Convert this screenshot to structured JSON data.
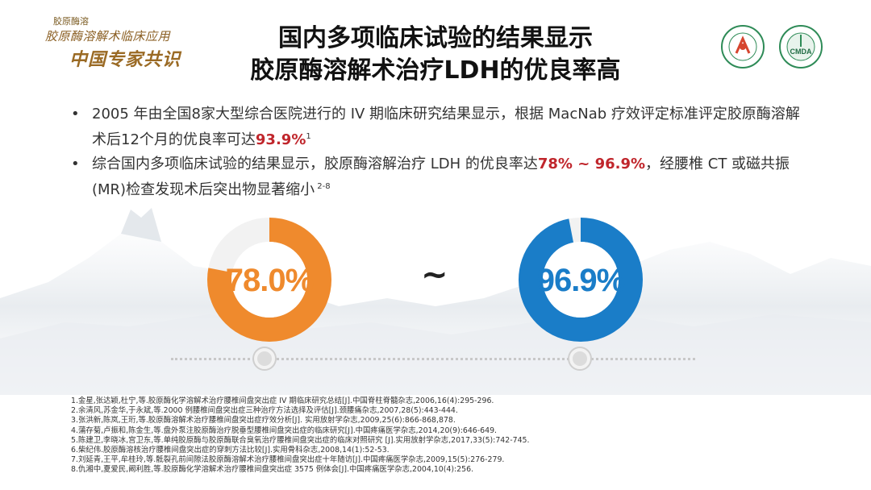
{
  "logo": {
    "small_text": "胶原酶溶",
    "line1": "胶原酶溶解术临床应用",
    "line2": "中国专家共识"
  },
  "title": {
    "line1": "国内多项临床试验的结果显示",
    "line2": "胶原酶溶解术治疗LDH的优良率高"
  },
  "emblems": [
    {
      "name": "chinese-medical-association-emblem",
      "text": "中华医学会"
    },
    {
      "name": "cmda-emblem",
      "text": "CMDA"
    }
  ],
  "bullets": [
    {
      "dot": "•",
      "text_before": "2005 年由全国8家大型综合医院进行的 IV 期临床研究结果显示，根据 MacNab 疗效评定标准评定胶原酶溶解术后12个月的优良率可达",
      "highlight": "93.9%",
      "sup": "1",
      "text_after": ""
    },
    {
      "dot": "•",
      "text_before": "综合国内多项临床试验的结果显示，胶原酶溶解治疗 LDH 的优良率达",
      "highlight": "78% ~ 96.9%",
      "text_after": "，经腰椎 CT 或磁共振(MR)检查发现术后突出物显著缩小",
      "sup": " 2-8"
    }
  ],
  "rings": [
    {
      "label": "78.0%",
      "value": 78.0,
      "color": "#ef8a2d"
    },
    {
      "label": "96.9%",
      "value": 96.9,
      "color": "#1a7dc8"
    }
  ],
  "separator": "~",
  "references": [
    "1.金星,张达颖,杜宁,等.胶原酶化学溶解术治疗腰椎间盘突出症 IV 期临床研究总结[J].中国脊柱脊髓杂志,2006,16(4):295-296.",
    "2.余清风,苏金华,于永斌,等.2000 例腰椎间盘突出症三种治疗方法选择及评估[J].颈腰痛杂志,2007,28(5):443-444.",
    "3.张洪新,陈岚,王珩,等.胶原酶溶解术治疗腰椎间盘突出症疗效分析[J]. 实用放射学杂志,2009,25(6):866-868,878.",
    "4.蒲存菊,卢振和,陈金生,等.盘外泵注胶原酶治疗脱垂型腰椎间盘突出症的临床研究[J].中国疼痛医学杂志,2014,20(9):646-649.",
    "5.陈建卫,李晓冰,宫卫东,等.单纯胶原酶与胶原酶联合臭氧治疗腰椎间盘突出症的临床对照研究 [J].实用放射学杂志,2017,33(5):742-745.",
    "6.柴纪伟.胶原酶溶核治疗腰椎间盘突出症的穿刺方法比较[J].实用骨科杂志,2008,14(1):52-53.",
    "7.刘延青,王平,牟桂玲,等.骶裂孔前间隙法胶原酶溶解术治疗腰椎间盘突出症十年随访[J].中国疼痛医学杂志,2009,15(5):276-279.",
    "8.仇湘中,夏爱民,阚利胜,等.胶原酶化学溶解术治疗腰椎间盘突出症 3575 例体会[J].中国疼痛医学杂志,2004,10(4):256."
  ]
}
